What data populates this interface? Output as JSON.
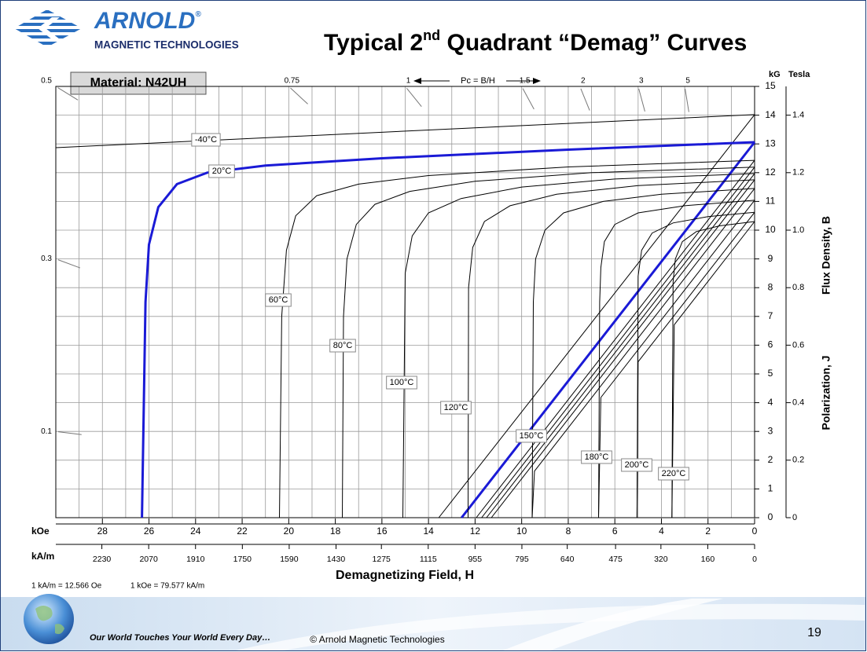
{
  "header": {
    "logo_name": "ARNOLD",
    "logo_mark": "®",
    "logo_sub": "MAGNETIC TECHNOLOGIES",
    "title_main": "Typical 2",
    "title_sup": "nd",
    "title_rest": " Quadrant “Demag” Curves"
  },
  "chart_data": {
    "type": "line",
    "material": "Material: N42UH",
    "x_label": "Demagnetizing Field, H",
    "x_unit": "kOe",
    "x2_unit": "kA/m",
    "y_unit": "kG",
    "y2_unit": "Tesla",
    "y_label": "Flux Density, B",
    "y2_label": "Polarization, J",
    "xlim": [
      30,
      0
    ],
    "xticks": [
      28,
      26,
      24,
      22,
      20,
      18,
      16,
      14,
      12,
      10,
      8,
      6,
      4,
      2,
      0
    ],
    "xminor": [
      29,
      27,
      25,
      23,
      21,
      19,
      17,
      15,
      13,
      11,
      9,
      7,
      5,
      3,
      1
    ],
    "x2lim": [
      2387.31,
      0
    ],
    "x2ticks": [
      2230,
      2070,
      1910,
      1750,
      1590,
      1430,
      1275,
      1115,
      955,
      795,
      640,
      475,
      320,
      160,
      0
    ],
    "ylim": [
      0,
      15
    ],
    "yticks": [
      0,
      1,
      2,
      3,
      4,
      5,
      6,
      7,
      8,
      9,
      10,
      11,
      12,
      13,
      14,
      15
    ],
    "y2lim": [
      0,
      1.5
    ],
    "y2ticks": [
      0,
      0.2,
      0.4,
      0.6,
      0.8,
      {
        "value": 1,
        "label": "1.0"
      },
      1.2,
      1.4
    ],
    "grid": true,
    "pc_label": "Pc = B/H",
    "pc_ticks": [
      0.5,
      0.75,
      1,
      1.5,
      2,
      3,
      5,
      0.3,
      0.1
    ],
    "conversion": [
      "1 kA/m = 12.566 Oe",
      "1 kOe = 79.577 kA/m"
    ],
    "series": [
      {
        "name": "-40°C",
        "color": "#000000",
        "x": [
          30,
          0
        ],
        "values": [
          12.87,
          14.02
        ],
        "normal_x": [
          0,
          13.56
        ],
        "normal_values": [
          14.02,
          0
        ]
      },
      {
        "name": "20°C",
        "color": "#1a1ad6",
        "x": [
          0,
          8,
          16,
          21,
          23.5,
          24.8,
          25.6,
          26.0,
          26.15,
          26.3
        ],
        "values": [
          13.06,
          12.8,
          12.5,
          12.25,
          12.0,
          11.6,
          10.8,
          9.5,
          7.5,
          0
        ],
        "normal_x": [
          0,
          12.58
        ],
        "normal_values": [
          13.06,
          0
        ]
      },
      {
        "name": "60°C",
        "color": "#000000",
        "x": [
          0,
          8,
          14,
          17,
          18.8,
          19.7,
          20.1,
          20.3,
          20.4
        ],
        "values": [
          12.43,
          12.2,
          11.9,
          11.6,
          11.2,
          10.5,
          9.3,
          7,
          0
        ],
        "normal_x": [
          0,
          11.95
        ],
        "normal_values": [
          12.43,
          0
        ]
      },
      {
        "name": "80°C",
        "color": "#000000",
        "x": [
          0,
          7,
          12,
          14.8,
          16.3,
          17.1,
          17.5,
          17.65,
          17.7
        ],
        "values": [
          12.19,
          12.0,
          11.7,
          11.35,
          10.9,
          10.2,
          9,
          7,
          0
        ],
        "normal_x": [
          0,
          11.72
        ],
        "normal_values": [
          12.19,
          0
        ]
      },
      {
        "name": "100°C",
        "color": "#000000",
        "x": [
          0,
          6,
          10,
          12.6,
          14,
          14.7,
          15.0,
          15.1
        ],
        "values": [
          11.97,
          11.78,
          11.5,
          11.1,
          10.6,
          9.8,
          8.5,
          0
        ],
        "normal_x": [
          0,
          11.51
        ],
        "normal_values": [
          11.97,
          0
        ]
      },
      {
        "name": "120°C",
        "color": "#000000",
        "x": [
          0,
          5,
          8.5,
          10.5,
          11.6,
          12.1,
          12.28,
          12.3
        ],
        "values": [
          11.75,
          11.55,
          11.25,
          10.85,
          10.3,
          9.4,
          8,
          0
        ],
        "normal_x": [
          0,
          11.3
        ],
        "normal_values": [
          11.75,
          0
        ]
      },
      {
        "name": "150°C",
        "color": "#000000",
        "x": [
          0,
          4,
          6.5,
          8.2,
          9.0,
          9.4,
          9.5,
          9.55
        ],
        "values": [
          11.45,
          11.25,
          11.0,
          10.6,
          10.0,
          9,
          7.5,
          0
        ],
        "normal_x": [
          0,
          9.45,
          9.55
        ],
        "normal_values": [
          11.45,
          1.62,
          0
        ]
      },
      {
        "name": "180°C",
        "color": "#000000",
        "x": [
          0,
          3,
          5,
          6,
          6.45,
          6.6,
          6.65,
          6.7
        ],
        "values": [
          11.04,
          10.85,
          10.6,
          10.2,
          9.6,
          8.7,
          7.5,
          0
        ],
        "normal_x": [
          0,
          6.6,
          6.7
        ],
        "normal_values": [
          11.04,
          4.18,
          0
        ]
      },
      {
        "name": "200°C",
        "color": "#000000",
        "x": [
          0,
          2,
          3.5,
          4.4,
          4.85,
          5.0,
          5.05
        ],
        "values": [
          10.62,
          10.47,
          10.25,
          9.9,
          9.3,
          8.4,
          0
        ],
        "normal_x": [
          0,
          5.0,
          5.05
        ],
        "normal_values": [
          10.62,
          5.42,
          0
        ]
      },
      {
        "name": "220°C",
        "color": "#000000",
        "x": [
          0,
          1.5,
          2.5,
          3.1,
          3.4,
          3.5,
          3.55
        ],
        "values": [
          10.3,
          10.15,
          9.95,
          9.6,
          9.0,
          8.2,
          0
        ],
        "normal_x": [
          0,
          3.45,
          3.55
        ],
        "normal_values": [
          10.3,
          6.71,
          0
        ]
      }
    ]
  },
  "footer": {
    "slogan": "Our World Touches Your World Every Day…",
    "copyright": "© Arnold Magnetic Technologies",
    "page": "19"
  }
}
